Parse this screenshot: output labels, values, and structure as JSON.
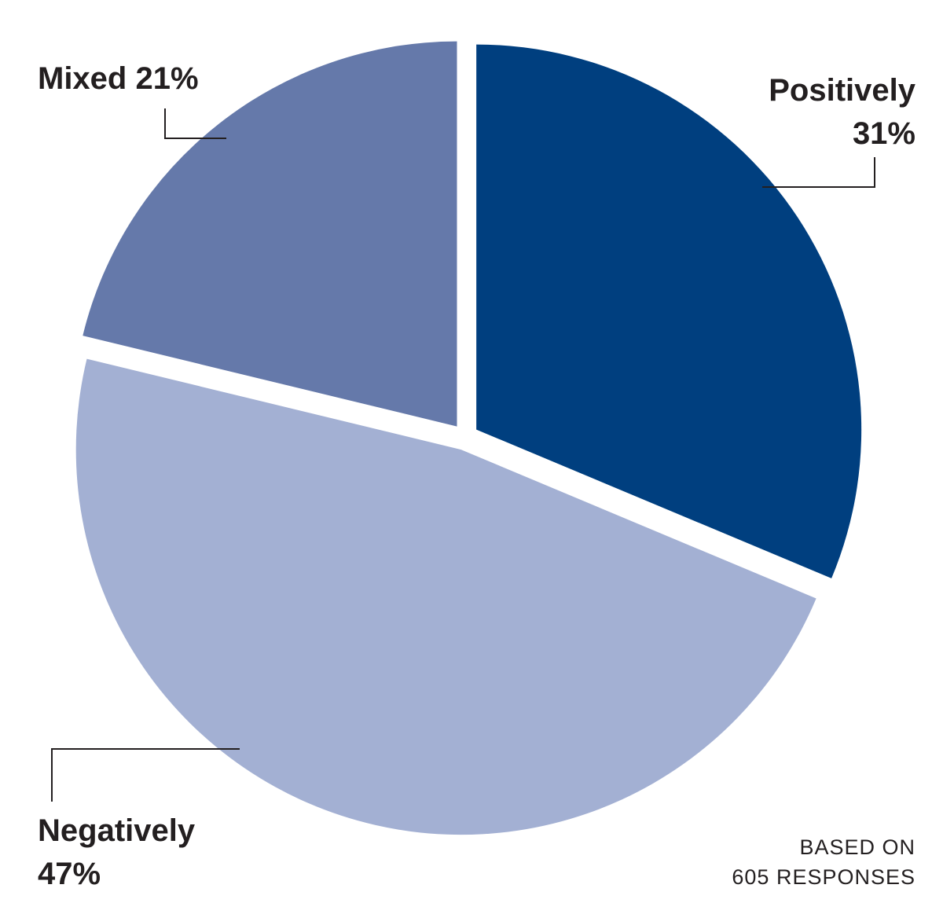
{
  "chart_data": {
    "type": "pie",
    "categories": [
      "Positively",
      "Negatively",
      "Mixed"
    ],
    "values": [
      31,
      47,
      21
    ],
    "value_labels": [
      "31%",
      "47%",
      "21%"
    ],
    "colors": [
      "#003f7f",
      "#a3b0d3",
      "#6579aa"
    ],
    "note": [
      "BASED ON",
      "605 RESPONSES"
    ]
  }
}
